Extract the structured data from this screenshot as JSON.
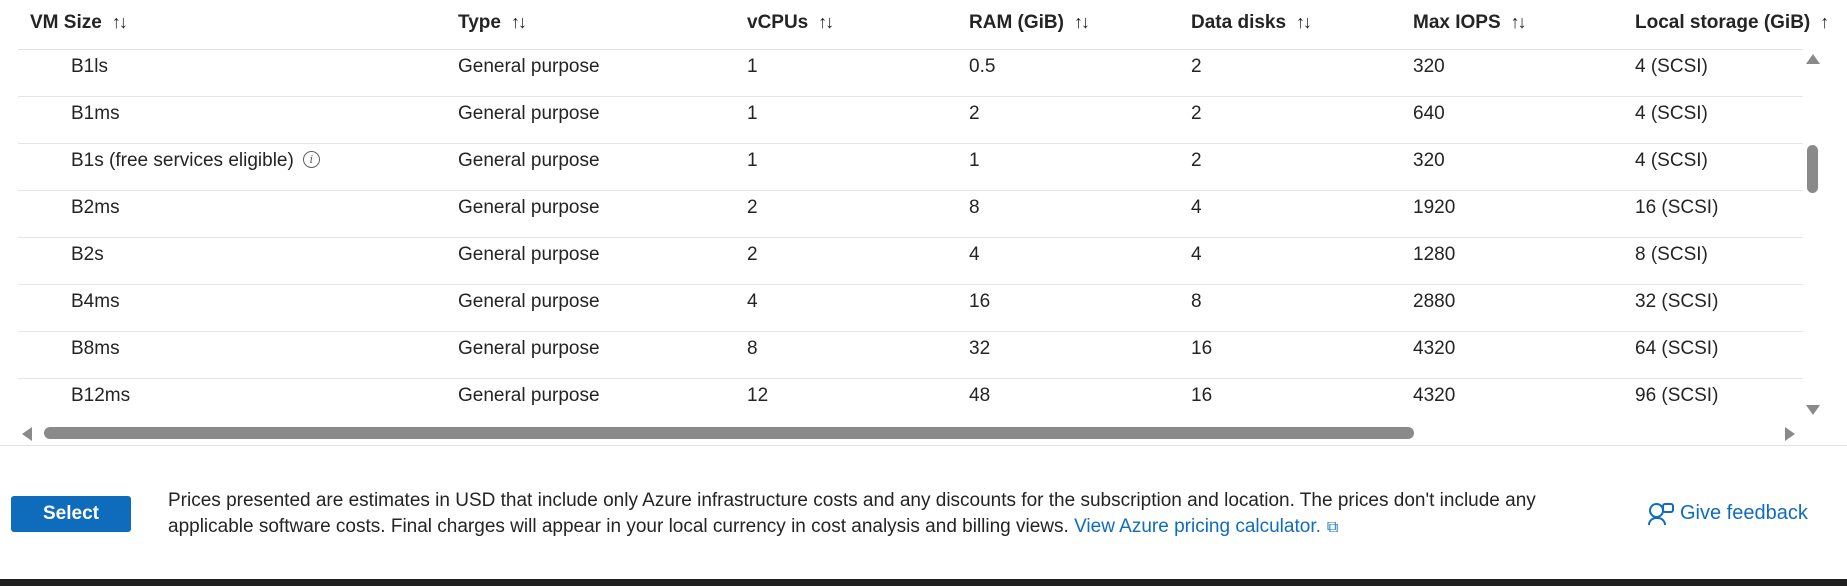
{
  "columns": [
    {
      "label": "VM Size",
      "sort_icon": "↑↓"
    },
    {
      "label": "Type",
      "sort_icon": "↑↓"
    },
    {
      "label": "vCPUs",
      "sort_icon": "↑↓"
    },
    {
      "label": "RAM (GiB)",
      "sort_icon": "↑↓"
    },
    {
      "label": "Data disks",
      "sort_icon": "↑↓"
    },
    {
      "label": "Max IOPS",
      "sort_icon": "↑↓"
    },
    {
      "label": "Local storage (GiB)",
      "sort_icon": "↑"
    }
  ],
  "rows": [
    {
      "size": "B1ls",
      "type": "General purpose",
      "vcpus": "1",
      "ram": "0.5",
      "disks": "2",
      "iops": "320",
      "storage": "4 (SCSI)"
    },
    {
      "size": "B1ms",
      "type": "General purpose",
      "vcpus": "1",
      "ram": "2",
      "disks": "2",
      "iops": "640",
      "storage": "4 (SCSI)"
    },
    {
      "size": "B1s",
      "note": "(free services eligible)",
      "info_icon": "i",
      "type": "General purpose",
      "vcpus": "1",
      "ram": "1",
      "disks": "2",
      "iops": "320",
      "storage": "4 (SCSI)"
    },
    {
      "size": "B2ms",
      "type": "General purpose",
      "vcpus": "2",
      "ram": "8",
      "disks": "4",
      "iops": "1920",
      "storage": "16 (SCSI)"
    },
    {
      "size": "B2s",
      "type": "General purpose",
      "vcpus": "2",
      "ram": "4",
      "disks": "4",
      "iops": "1280",
      "storage": "8 (SCSI)"
    },
    {
      "size": "B4ms",
      "type": "General purpose",
      "vcpus": "4",
      "ram": "16",
      "disks": "8",
      "iops": "2880",
      "storage": "32 (SCSI)"
    },
    {
      "size": "B8ms",
      "type": "General purpose",
      "vcpus": "8",
      "ram": "32",
      "disks": "16",
      "iops": "4320",
      "storage": "64 (SCSI)"
    },
    {
      "size": "B12ms",
      "type": "General purpose",
      "vcpus": "12",
      "ram": "48",
      "disks": "16",
      "iops": "4320",
      "storage": "96 (SCSI)"
    }
  ],
  "footer": {
    "select_label": "Select",
    "pricing_text": "Prices presented are estimates in USD that include only Azure infrastructure costs and any discounts for the subscription and location. The prices don't include any applicable software costs. Final charges will appear in your local currency in cost analysis and billing views.",
    "pricing_link": "View Azure pricing calculator.",
    "ext_icon": "⧉",
    "feedback_label": "Give feedback"
  },
  "colors": {
    "accent": "#0f6cbd",
    "scrollbar": "#8a8a8a"
  }
}
